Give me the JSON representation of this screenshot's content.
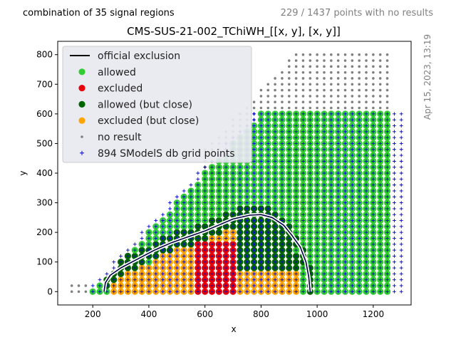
{
  "header": {
    "left_text": "combination of 35 signal regions",
    "right_text": "229 / 1437 points with no results",
    "side_text": "Apr 15, 2023, 13:19"
  },
  "chart_data": {
    "type": "scatter",
    "title": "CMS-SUS-21-002_TChiWH_[[x, y], [x, y]]",
    "xlabel": "x",
    "ylabel": "y",
    "xlim": [
      75,
      1335
    ],
    "ylim": [
      -45,
      845
    ],
    "xticks": [
      200,
      400,
      600,
      800,
      1000,
      1200
    ],
    "yticks": [
      0,
      100,
      200,
      300,
      400,
      500,
      600,
      700,
      800
    ],
    "legend_position": "upper-left",
    "grid": false,
    "legend": [
      {
        "label": "official exclusion",
        "marker": "line",
        "color": "#000000"
      },
      {
        "label": "allowed",
        "marker": "circle",
        "color": "#32cd32"
      },
      {
        "label": "excluded",
        "marker": "circle",
        "color": "#e8000b"
      },
      {
        "label": "allowed (but close)",
        "marker": "circle",
        "color": "#006400"
      },
      {
        "label": "excluded (but close)",
        "marker": "circle",
        "color": "#ffa500"
      },
      {
        "label": "no result",
        "marker": "dot",
        "color": "#808080"
      },
      {
        "label": "894 SModelS db grid points",
        "marker": "plus",
        "color": "#0000cd"
      }
    ],
    "official_exclusion": [
      [
        240,
        0
      ],
      [
        245,
        30
      ],
      [
        262,
        55
      ],
      [
        300,
        80
      ],
      [
        360,
        110
      ],
      [
        420,
        140
      ],
      [
        480,
        165
      ],
      [
        540,
        185
      ],
      [
        600,
        205
      ],
      [
        650,
        225
      ],
      [
        700,
        245
      ],
      [
        760,
        258
      ],
      [
        800,
        260
      ],
      [
        840,
        250
      ],
      [
        880,
        225
      ],
      [
        910,
        190
      ],
      [
        940,
        150
      ],
      [
        960,
        100
      ],
      [
        970,
        50
      ],
      [
        975,
        0
      ]
    ],
    "grid_points": {
      "x_step": 25,
      "y_step": 20,
      "x_range": [
        200,
        1300
      ],
      "y_range": [
        0,
        600
      ]
    },
    "no_result_region": {
      "x_range": [
        125,
        1250
      ],
      "y_range": [
        0,
        800
      ]
    },
    "colors": {
      "allowed": "#32cd32",
      "excluded": "#e8000b",
      "allowed_close": "#006400",
      "excluded_close": "#ffa500",
      "no_result": "#808080",
      "grid": "#0000cd"
    }
  }
}
